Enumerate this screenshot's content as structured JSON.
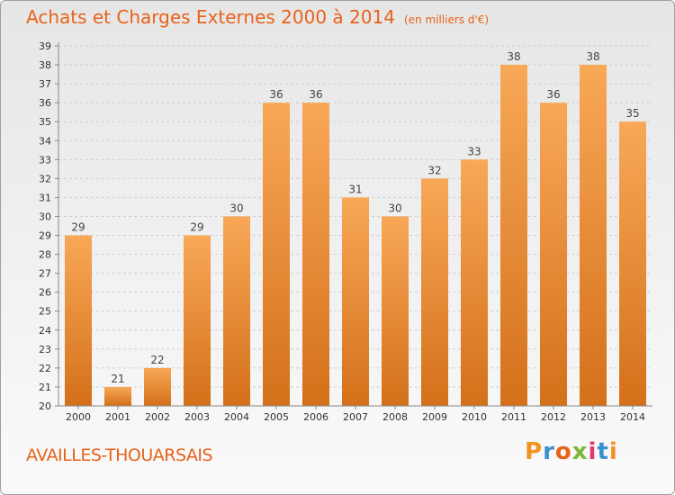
{
  "header": {
    "title": "Achats et Charges Externes 2000 à 2014",
    "unit": "(en milliers d'€)"
  },
  "footer": {
    "city": "AVAILLES-THOUARSAIS",
    "logo_text": "Proxiti"
  },
  "colors": {
    "accent": "#e8621a",
    "bar_light": "#f8a857",
    "bar_dark": "#d4701a"
  },
  "chart_data": {
    "type": "bar",
    "title": "Achats et Charges Externes 2000 à 2014",
    "subtitle": "(en milliers d'€)",
    "categories": [
      "2000",
      "2001",
      "2002",
      "2003",
      "2004",
      "2005",
      "2006",
      "2007",
      "2008",
      "2009",
      "2010",
      "2011",
      "2012",
      "2013",
      "2014"
    ],
    "values": [
      29,
      21,
      22,
      29,
      30,
      36,
      36,
      31,
      30,
      32,
      33,
      38,
      36,
      38,
      35
    ],
    "data_labels": [
      "29",
      "21",
      "22",
      "29",
      "30",
      "36",
      "36",
      "31",
      "30",
      "32",
      "33",
      "38",
      "36",
      "38",
      "35"
    ],
    "y_ticks": [
      "20",
      "21",
      "22",
      "23",
      "24",
      "25",
      "26",
      "27",
      "28",
      "29",
      "30",
      "31",
      "32",
      "33",
      "34",
      "35",
      "36",
      "37",
      "38",
      "39"
    ],
    "ylim": [
      20,
      39
    ],
    "grid": true
  }
}
